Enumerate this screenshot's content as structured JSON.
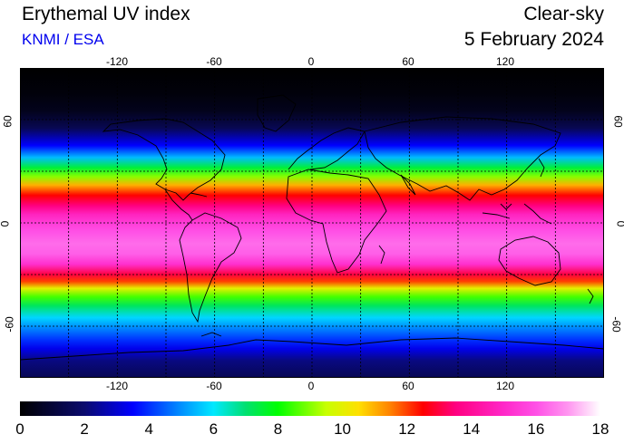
{
  "header": {
    "title": "Erythemal UV index",
    "subtitle": "KNMI / ESA",
    "mode": "Clear-sky",
    "date": "5 February 2024"
  },
  "map": {
    "projection": "equirectangular",
    "lon_ticks": [
      "-120",
      "-60",
      "0",
      "60",
      "120"
    ],
    "lon_tick_values": [
      -120,
      -60,
      0,
      60,
      120
    ],
    "lat_ticks": [
      "60",
      "0",
      "-60"
    ],
    "lat_tick_values": [
      60,
      0,
      -60
    ],
    "lon_range": [
      -180,
      180
    ],
    "lat_range": [
      -90,
      90
    ],
    "grid": true,
    "grid_spacing_lon": 30,
    "grid_spacing_lat": 30,
    "uv_profile_by_latitude": [
      [
        90,
        0
      ],
      [
        75,
        0.2
      ],
      [
        65,
        0.5
      ],
      [
        55,
        1.5
      ],
      [
        45,
        3.5
      ],
      [
        38,
        5.5
      ],
      [
        32,
        7.5
      ],
      [
        27,
        9.0
      ],
      [
        22,
        11.0
      ],
      [
        16,
        12.5
      ],
      [
        10,
        13.5
      ],
      [
        5,
        14.8
      ],
      [
        0,
        15.5
      ],
      [
        -5,
        16.0
      ],
      [
        -12,
        16.4
      ],
      [
        -18,
        16.2
      ],
      [
        -24,
        15.2
      ],
      [
        -30,
        13.0
      ],
      [
        -34,
        12.0
      ],
      [
        -38,
        10.0
      ],
      [
        -43,
        8.5
      ],
      [
        -48,
        7.2
      ],
      [
        -55,
        5.8
      ],
      [
        -62,
        4.8
      ],
      [
        -68,
        4.0
      ],
      [
        -73,
        3.3
      ],
      [
        -80,
        2.2
      ],
      [
        -90,
        1.5
      ]
    ]
  },
  "colorbar": {
    "labels": [
      "0",
      "2",
      "4",
      "6",
      "8",
      "10",
      "12",
      "14",
      "16",
      "18"
    ],
    "min": 0,
    "max": 18,
    "color_stops": [
      [
        0,
        "#000000"
      ],
      [
        2,
        "#0a0a6e"
      ],
      [
        3.5,
        "#0000ff"
      ],
      [
        5,
        "#0090ff"
      ],
      [
        6,
        "#00e8ff"
      ],
      [
        7,
        "#00e070"
      ],
      [
        8,
        "#00ff00"
      ],
      [
        9.5,
        "#c8ff00"
      ],
      [
        10.5,
        "#ffe000"
      ],
      [
        11.5,
        "#ff8000"
      ],
      [
        12.5,
        "#ff0000"
      ],
      [
        13.5,
        "#ff0080"
      ],
      [
        15,
        "#ff28c8"
      ],
      [
        16,
        "#ff50e6"
      ],
      [
        17,
        "#ff96f0"
      ],
      [
        18,
        "#ffffff"
      ]
    ]
  }
}
